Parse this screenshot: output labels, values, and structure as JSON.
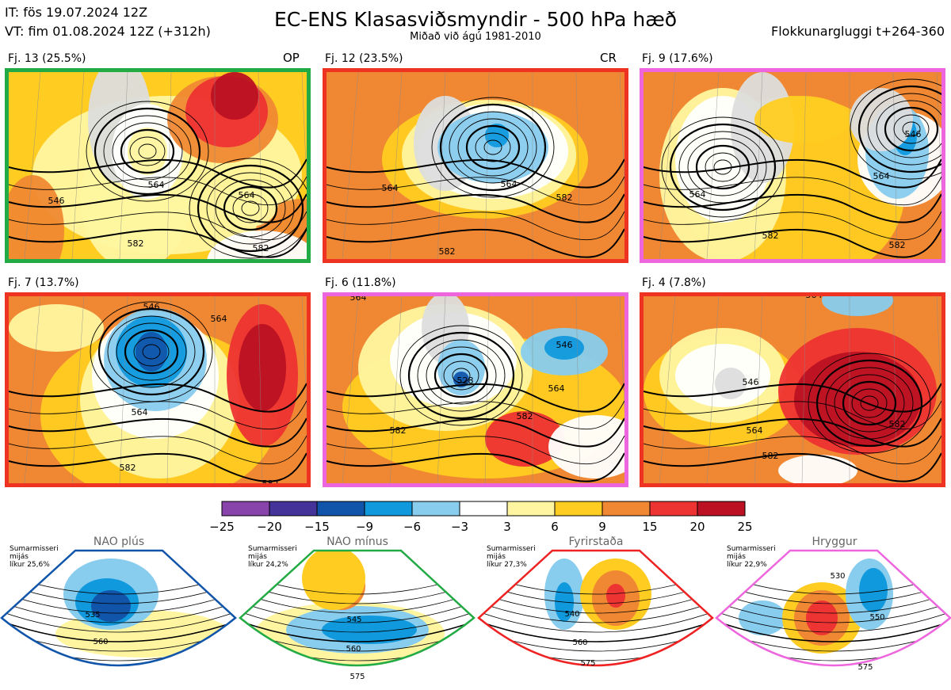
{
  "header": {
    "it_line": "IT: fös 19.07.2024 12Z",
    "vt_line": "VT: fim 01.08.2024 12Z  (+312h)",
    "title": "EC-ENS Klasasviðsmyndir - 500 hPa hæð",
    "subtitle": "Miðað við ágú 1981-2010",
    "window": "Flokkunargluggi t+264-360"
  },
  "panels": [
    {
      "label": "Fj. 13 (25.5%)",
      "tag": "OP",
      "border": "#22aa44"
    },
    {
      "label": "Fj. 12 (23.5%)",
      "tag": "CR",
      "border": "#ee3322"
    },
    {
      "label": "Fj. 9 (17.6%)",
      "tag": "",
      "border": "#ee66dd"
    },
    {
      "label": "Fj. 7 (13.7%)",
      "tag": "",
      "border": "#ee3322"
    },
    {
      "label": "Fj. 6 (11.8%)",
      "tag": "",
      "border": "#ee66dd"
    },
    {
      "label": "Fj. 4 (7.8%)",
      "tag": "",
      "border": "#ee3322"
    }
  ],
  "regimes": [
    {
      "name": "NAO plús",
      "season": "Sumarmisseri",
      "mean": "mijás",
      "prob": "líkur 25,6%",
      "color": "#1155aa"
    },
    {
      "name": "NAO mínus",
      "season": "Sumarmisseri",
      "mean": "mijás",
      "prob": "líkur 24,2%",
      "color": "#22aa44"
    },
    {
      "name": "Fyrirstaða",
      "season": "Sumarmisseri",
      "mean": "mijás",
      "prob": "líkur 27,3%",
      "color": "#ee2222"
    },
    {
      "name": "Hryggur",
      "season": "Sumarmisseri",
      "mean": "mijás",
      "prob": "líkur 22,9%",
      "color": "#ee66dd"
    }
  ],
  "chart_data": {
    "type": "heatmap",
    "title": "EC-ENS Klasasviðsmyndir - 500 hPa hæð",
    "colorbar": {
      "ticks": [
        -25,
        -20,
        -15,
        -9,
        -6,
        -3,
        3,
        6,
        9,
        15,
        20,
        25
      ],
      "tick_labels": [
        "−25",
        "−20",
        "−15",
        "−9",
        "−6",
        "−3",
        "3",
        "6",
        "9",
        "15",
        "20",
        "25"
      ],
      "colors": [
        "#8844aa",
        "#443399",
        "#1155aa",
        "#1199dd",
        "#88ccee",
        "#ffffff",
        "#fff5a0",
        "#ffcc22",
        "#f08833",
        "#ee3333",
        "#bb1122"
      ]
    },
    "contour_labels": [
      [
        "564",
        "546",
        "564",
        "582",
        "582"
      ],
      [
        "564",
        "564",
        "582",
        "582"
      ],
      [
        "564",
        "546",
        "564",
        "582",
        "582"
      ],
      [
        "546",
        "564",
        "564",
        "582",
        "582"
      ],
      [
        "564",
        "546",
        "528",
        "564",
        "582",
        "582"
      ],
      [
        "564",
        "546",
        "564",
        "582",
        "582"
      ]
    ],
    "regime_contour_labels": [
      [
        "535",
        "560"
      ],
      [
        "545",
        "560",
        "575"
      ],
      [
        "540",
        "560",
        "575"
      ],
      [
        "530",
        "550",
        "575"
      ]
    ]
  }
}
